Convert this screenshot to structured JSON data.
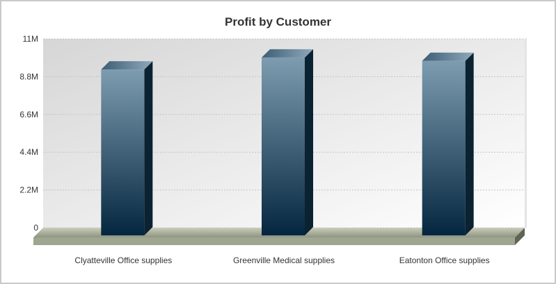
{
  "chart_data": {
    "type": "bar",
    "title": "Profit by Customer",
    "xlabel": "",
    "ylabel": "",
    "categories": [
      "Clyatteville Office supplies",
      "Greenville Medical supplies",
      "Eatonton Office supplies"
    ],
    "values": [
      9700000,
      10400000,
      10200000
    ],
    "ylim": [
      0,
      11000000
    ],
    "yticks": [
      {
        "value": 0,
        "label": "0"
      },
      {
        "value": 2200000,
        "label": "2.2M"
      },
      {
        "value": 4400000,
        "label": "4.4M"
      },
      {
        "value": 6600000,
        "label": "6.6M"
      },
      {
        "value": 8800000,
        "label": "8.8M"
      },
      {
        "value": 11000000,
        "label": "11M"
      }
    ],
    "grid": true,
    "colors": {
      "bar_top": "#7d9cb0",
      "bar_bottom": "#04263f",
      "floor": "#a8ae98"
    }
  }
}
